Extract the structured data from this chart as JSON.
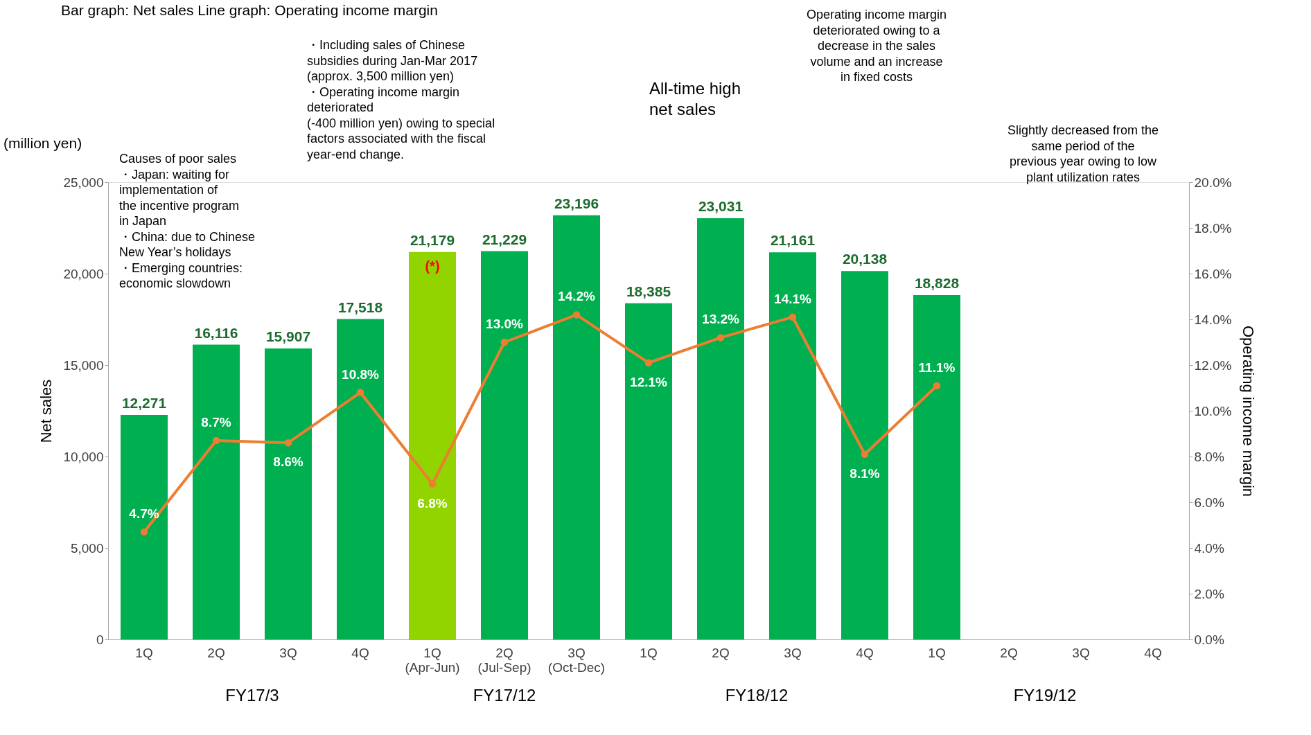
{
  "chart_data": {
    "type": "bar",
    "ylabel": "Net sales",
    "y2label": "Operating income margin",
    "categories": [
      "1Q",
      "2Q",
      "3Q",
      "4Q",
      "1Q\n(Apr-Jun)",
      "2Q\n(Jul-Sep)",
      "3Q\n(Oct-Dec)",
      "1Q",
      "2Q",
      "3Q",
      "4Q",
      "1Q",
      "2Q",
      "3Q",
      "4Q"
    ],
    "series": [
      {
        "colors": [
          "#00b050",
          "#00b050",
          "#00b050",
          "#00b050",
          "#92d400",
          "#00b050",
          "#00b050",
          "#00b050",
          "#00b050",
          "#00b050",
          "#00b050",
          "#00b050",
          null,
          null,
          null
        ],
        "values": [
          12271,
          16116,
          15907,
          17518,
          21179,
          21229,
          23196,
          18385,
          23031,
          21161,
          20138,
          18828,
          null,
          null,
          null
        ],
        "value_labels": [
          "12,271",
          "16,116",
          "15,907",
          "17,518",
          "21,179",
          "21,229",
          "23,196",
          "18,385",
          "23,031",
          "21,161",
          "20,138",
          "18,828",
          null,
          null,
          null
        ]
      },
      {
        "type": "line",
        "axis": "y2",
        "color": "#ed7d31",
        "marker": "circle",
        "values": [
          4.7,
          8.7,
          8.6,
          10.8,
          6.8,
          13.0,
          14.2,
          12.1,
          13.2,
          14.1,
          8.1,
          11.1,
          null,
          null,
          null
        ],
        "value_labels": [
          "4.7%",
          "8.7%",
          "8.6%",
          "10.8%",
          "6.8%",
          "13.0%",
          "14.2%",
          "12.1%",
          "13.2%",
          "14.1%",
          "8.1%",
          "11.1%",
          null,
          null,
          null
        ]
      }
    ],
    "ylim": [
      0,
      25000
    ],
    "yticks": [
      {
        "value": 0,
        "label": "0"
      },
      {
        "value": 5000,
        "label": "5,000"
      },
      {
        "value": 10000,
        "label": "10,000"
      },
      {
        "value": 15000,
        "label": "15,000"
      },
      {
        "value": 20000,
        "label": "20,000"
      },
      {
        "value": 25000,
        "label": "25,000"
      }
    ],
    "y2lim": [
      0,
      20
    ],
    "y2ticks": [
      {
        "value": 0,
        "label": "0.0%"
      },
      {
        "value": 2,
        "label": "2.0%"
      },
      {
        "value": 4,
        "label": "4.0%"
      },
      {
        "value": 6,
        "label": "6.0%"
      },
      {
        "value": 8,
        "label": "8.0%"
      },
      {
        "value": 10,
        "label": "10.0%"
      },
      {
        "value": 12,
        "label": "12.0%"
      },
      {
        "value": 14,
        "label": "14.0%"
      },
      {
        "value": 16,
        "label": "16.0%"
      },
      {
        "value": 18,
        "label": "18.0%"
      },
      {
        "value": 20,
        "label": "20.0%"
      }
    ],
    "grid": false,
    "annotations": [
      "Bar graph: Net sales      Line graph: Operating income margin",
      "(million yen)",
      "Causes of poor sales\n・Japan: waiting for\n  implementation of\n  the incentive program\n  in Japan\n・China: due to Chinese\n  New Year’s holidays\n・Emerging countries:\n  economic slowdown",
      "・Including sales of Chinese\n  subsidies during Jan-Mar 2017\n  (approx. 3,500 million yen)\n\n・Operating income margin\n  deteriorated\n  (-400 million yen) owing to special\n  factors associated with the fiscal\n  year-end change.",
      "All-time high\nnet sales",
      "Operating income margin\ndeteriorated owing to a\ndecrease in the sales\nvolume and an increase\nin fixed costs",
      "Slightly decreased from the\nsame period of the\nprevious year owing to low\nplant utilization rates",
      "(*)",
      "FY17/3",
      "FY17/12",
      "FY18/12",
      "FY19/12"
    ]
  }
}
